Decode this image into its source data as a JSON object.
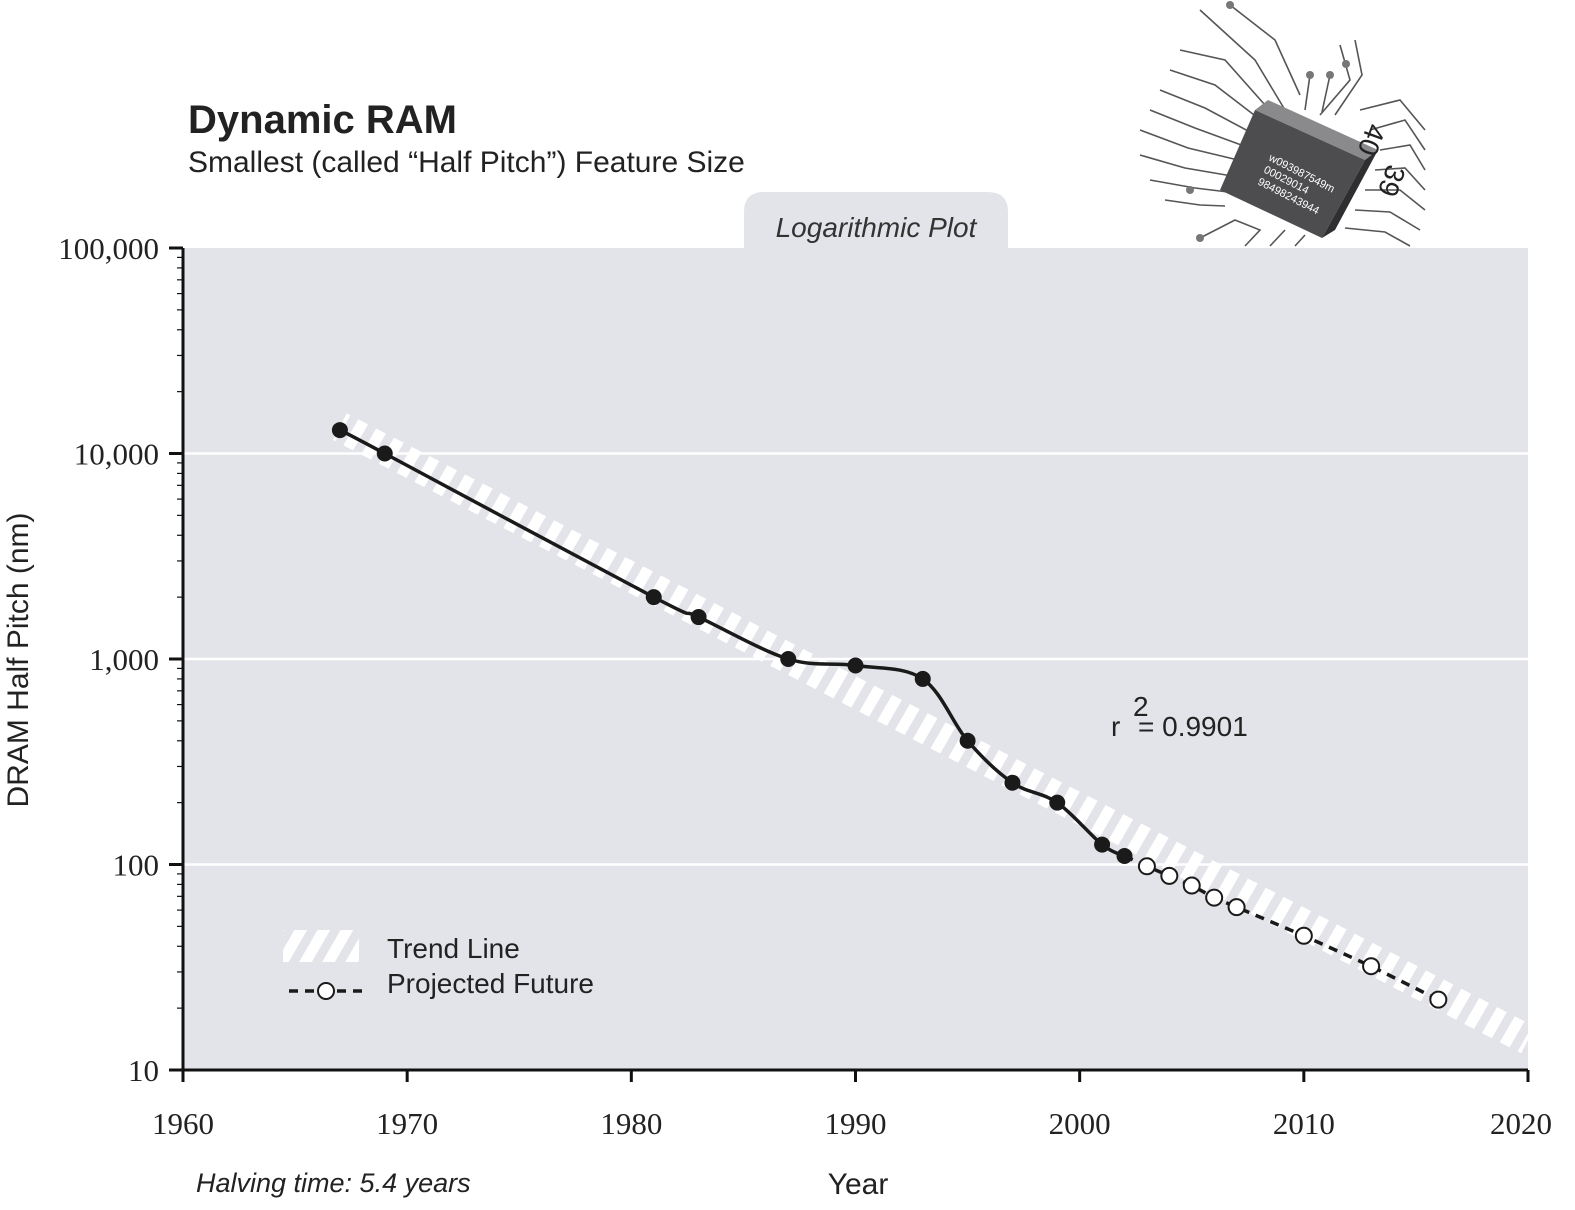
{
  "chart_data": {
    "type": "line",
    "title": "Dynamic RAM",
    "subtitle": "Smallest (called “Half Pitch”) Feature Size",
    "plot_tab": "Logarithmic Plot",
    "xlabel": "Year",
    "ylabel": "DRAM Half Pitch (nm)",
    "xlim": [
      1960,
      2020
    ],
    "ylim": [
      10,
      100000
    ],
    "y_scale": "log",
    "x_ticks": [
      "1960",
      "1970",
      "1980",
      "1990",
      "2000",
      "2010",
      "2020"
    ],
    "y_ticks": [
      "100,000",
      "10,000",
      "1,000",
      "100",
      "10"
    ],
    "grid": "horizontal",
    "r2_label": "r",
    "r2_exponent": "2",
    "r2_value": "= 0.9901",
    "note": "Halving time: 5.4 years",
    "legend_position": "bottom-left",
    "legend": {
      "trend": "Trend Line",
      "projected": "Projected Future"
    },
    "series": [
      {
        "x": [
          1967,
          1969,
          1981,
          1983,
          1987,
          1990,
          1993,
          1995,
          1997,
          1999,
          2001,
          2002
        ],
        "y": [
          13000,
          10000,
          2000,
          1600,
          1000,
          930,
          800,
          400,
          250,
          200,
          125,
          110
        ]
      },
      {
        "name": "Projected Future",
        "x": [
          2003,
          2004,
          2005,
          2006,
          2007,
          2010,
          2013,
          2016
        ],
        "y": [
          98,
          88,
          79,
          69,
          62,
          45,
          32,
          22
        ]
      },
      {
        "name": "Trend Line",
        "x": [
          1967,
          2020
        ],
        "y": [
          13500,
          14
        ]
      }
    ]
  },
  "chip": {
    "lines": [
      "w093987549m",
      "00029014",
      "98498243944"
    ],
    "pin_labels": [
      "40",
      "39"
    ]
  },
  "colors": {
    "plot_bg": "#e3e4e9",
    "marker": "#1a1a1a",
    "trend": "#ffffff",
    "chip": "#4d4d4f"
  }
}
